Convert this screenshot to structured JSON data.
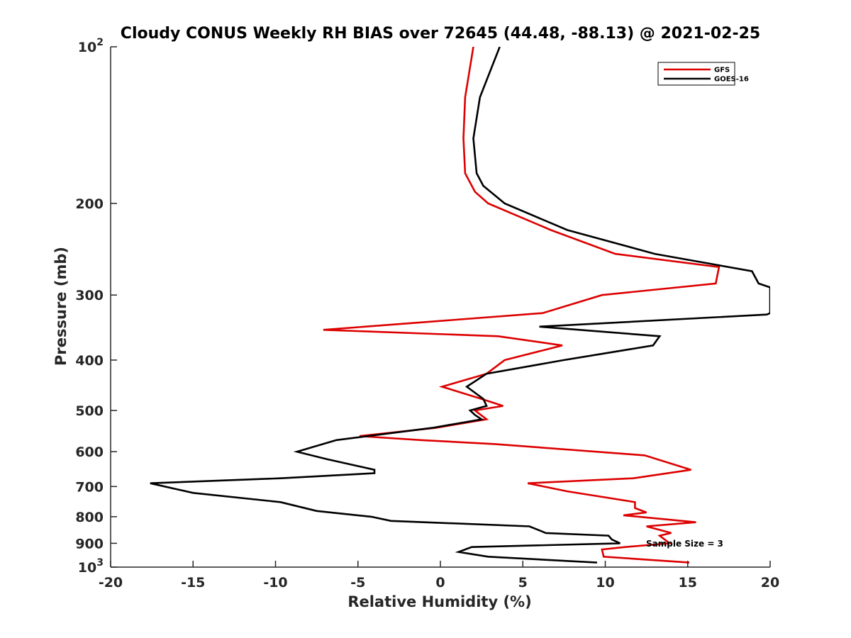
{
  "chart_data": {
    "type": "line",
    "title": "Cloudy CONUS Weekly RH BIAS over 72645 (44.48, -88.13) @ 2021-02-25",
    "xlabel": "Relative Humidity (%)",
    "ylabel": "Pressure (mb)",
    "xlim": [
      -20,
      20
    ],
    "ylim": [
      1000,
      100
    ],
    "yscale": "log",
    "grid": false,
    "legend_position": "top-right",
    "x_ticks": [
      "-20",
      "-15",
      "-10",
      "-5",
      "0",
      "5",
      "10",
      "15",
      "20"
    ],
    "y_ticks": [
      {
        "value": 100,
        "base": "10",
        "exp": "2"
      },
      {
        "value": 200,
        "label": "200"
      },
      {
        "value": 300,
        "label": "300"
      },
      {
        "value": 400,
        "label": "400"
      },
      {
        "value": 500,
        "label": "500"
      },
      {
        "value": 600,
        "label": "600"
      },
      {
        "value": 700,
        "label": "700"
      },
      {
        "value": 800,
        "label": "800"
      },
      {
        "value": 900,
        "label": "900"
      },
      {
        "value": 1000,
        "base": "10",
        "exp": "3"
      }
    ],
    "annotation": "Sample Size = 3",
    "series": [
      {
        "name": "GFS",
        "color": "#dd0000",
        "points": [
          [
            2.0,
            100
          ],
          [
            1.5,
            125
          ],
          [
            1.4,
            150
          ],
          [
            1.5,
            175
          ],
          [
            2.1,
            190
          ],
          [
            2.9,
            200
          ],
          [
            6.7,
            225
          ],
          [
            10.6,
            250
          ],
          [
            16.9,
            265
          ],
          [
            16.7,
            285
          ],
          [
            9.8,
            300
          ],
          [
            6.2,
            325
          ],
          [
            -7.1,
            350
          ],
          [
            3.5,
            360
          ],
          [
            7.4,
            375
          ],
          [
            3.9,
            400
          ],
          [
            2.8,
            425
          ],
          [
            0.1,
            450
          ],
          [
            2.5,
            475
          ],
          [
            3.8,
            490
          ],
          [
            2.1,
            500
          ],
          [
            2.8,
            520
          ],
          [
            -0.3,
            540
          ],
          [
            -4.9,
            560
          ],
          [
            -1.2,
            570
          ],
          [
            3.3,
            580
          ],
          [
            12.4,
            610
          ],
          [
            15.2,
            650
          ],
          [
            11.7,
            675
          ],
          [
            5.3,
            690
          ],
          [
            7.7,
            715
          ],
          [
            11.8,
            750
          ],
          [
            11.8,
            770
          ],
          [
            12.5,
            785
          ],
          [
            11.1,
            795
          ],
          [
            15.5,
            820
          ],
          [
            12.5,
            835
          ],
          [
            14.0,
            860
          ],
          [
            13.3,
            870
          ],
          [
            13.9,
            900
          ],
          [
            11.2,
            915
          ],
          [
            9.8,
            925
          ],
          [
            9.9,
            955
          ],
          [
            15.1,
            980
          ]
        ]
      },
      {
        "name": "GOES-16",
        "color": "#000000",
        "points": [
          [
            3.6,
            100
          ],
          [
            2.4,
            125
          ],
          [
            2.0,
            150
          ],
          [
            2.2,
            175
          ],
          [
            2.6,
            185
          ],
          [
            3.9,
            200
          ],
          [
            7.7,
            225
          ],
          [
            13.0,
            250
          ],
          [
            18.9,
            270
          ],
          [
            19.3,
            285
          ],
          [
            20.0,
            290
          ],
          [
            20.0,
            325
          ],
          [
            19.8,
            327
          ],
          [
            6.0,
            345
          ],
          [
            13.3,
            360
          ],
          [
            12.9,
            375
          ],
          [
            7.5,
            400
          ],
          [
            2.8,
            425
          ],
          [
            1.6,
            450
          ],
          [
            2.6,
            475
          ],
          [
            2.8,
            490
          ],
          [
            1.8,
            500
          ],
          [
            2.1,
            510
          ],
          [
            2.5,
            520
          ],
          [
            -0.5,
            540
          ],
          [
            -6.3,
            570
          ],
          [
            -8.7,
            600
          ],
          [
            -6.9,
            620
          ],
          [
            -4.0,
            650
          ],
          [
            -4.0,
            660
          ],
          [
            -9.7,
            675
          ],
          [
            -17.6,
            690
          ],
          [
            -15.0,
            720
          ],
          [
            -9.7,
            750
          ],
          [
            -7.5,
            780
          ],
          [
            -4.2,
            800
          ],
          [
            -3.0,
            815
          ],
          [
            5.4,
            835
          ],
          [
            6.4,
            860
          ],
          [
            10.2,
            870
          ],
          [
            10.4,
            885
          ],
          [
            10.9,
            900
          ],
          [
            1.9,
            915
          ],
          [
            1.1,
            935
          ],
          [
            2.9,
            955
          ],
          [
            9.5,
            980
          ]
        ]
      }
    ]
  }
}
